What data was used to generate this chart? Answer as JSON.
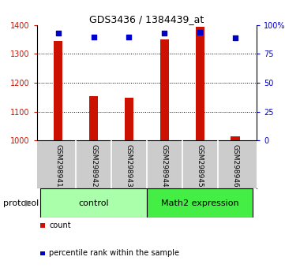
{
  "title": "GDS3436 / 1384439_at",
  "samples": [
    "GSM298941",
    "GSM298942",
    "GSM298943",
    "GSM298944",
    "GSM298945",
    "GSM298946"
  ],
  "counts": [
    1345,
    1155,
    1148,
    1350,
    1395,
    1015
  ],
  "percentile_ranks": [
    93,
    90,
    90,
    93,
    94,
    89
  ],
  "ylim_left": [
    1000,
    1400
  ],
  "ylim_right": [
    0,
    100
  ],
  "yticks_left": [
    1000,
    1100,
    1200,
    1300,
    1400
  ],
  "yticks_right": [
    0,
    25,
    50,
    75,
    100
  ],
  "ytick_labels_right": [
    "0",
    "25",
    "50",
    "75",
    "100%"
  ],
  "bar_color": "#cc1100",
  "dot_color": "#0000cc",
  "groups": [
    {
      "label": "control",
      "indices": [
        0,
        1,
        2
      ],
      "color": "#aaffaa"
    },
    {
      "label": "Math2 expression",
      "indices": [
        3,
        4,
        5
      ],
      "color": "#44ee44"
    }
  ],
  "protocol_label": "protocol",
  "legend_items": [
    {
      "label": "count",
      "color": "#cc1100"
    },
    {
      "label": "percentile rank within the sample",
      "color": "#0000cc"
    }
  ],
  "background_color": "#ffffff",
  "plot_bg_color": "#ffffff",
  "sample_bg_color": "#cccccc",
  "bar_width": 0.25
}
